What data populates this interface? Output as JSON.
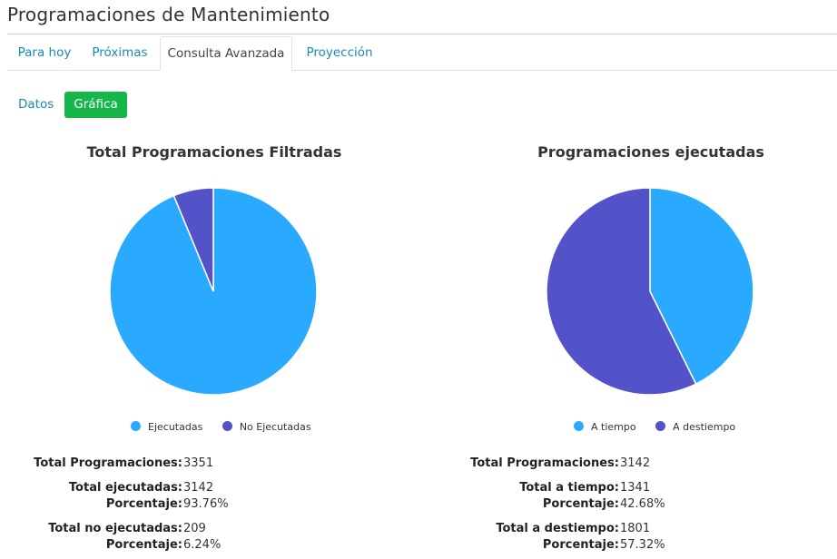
{
  "page": {
    "title": "Programaciones de Mantenimiento"
  },
  "tabs": [
    {
      "label": "Para hoy",
      "active": false
    },
    {
      "label": "Próximas",
      "active": false
    },
    {
      "label": "Consulta Avanzada",
      "active": true
    },
    {
      "label": "Proyección",
      "active": false
    }
  ],
  "subnav": {
    "datos": "Datos",
    "grafica": "Gráfica"
  },
  "colors": {
    "series1": "#2aaaff",
    "series2": "#5352c8",
    "tabLink": "#1b8ab8",
    "activeBtn": "#16b64a"
  },
  "chart_data": [
    {
      "type": "pie",
      "title": "Total Programaciones Filtradas",
      "labels": [
        "Ejecutadas",
        "No Ejecutadas"
      ],
      "values": [
        3142,
        209
      ],
      "colors": [
        "#2aaaff",
        "#5352c8"
      ],
      "legend": "bottom"
    },
    {
      "type": "pie",
      "title": "Programaciones ejecutadas",
      "labels": [
        "A tiempo",
        "A destiempo"
      ],
      "values": [
        1341,
        1801
      ],
      "colors": [
        "#2aaaff",
        "#5352c8"
      ],
      "legend": "bottom"
    }
  ],
  "stats": {
    "left": {
      "total_label": "Total Programaciones:",
      "total_value": "3351",
      "exec_label": "Total ejecutadas:",
      "exec_value": "3142",
      "exec_pct_label": "Porcentaje:",
      "exec_pct_value": "93.76%",
      "noexec_label": "Total no ejecutadas:",
      "noexec_value": "209",
      "noexec_pct_label": "Porcentaje:",
      "noexec_pct_value": "6.24%"
    },
    "right": {
      "total_label": "Total Programaciones:",
      "total_value": "3142",
      "ontime_label": "Total a tiempo:",
      "ontime_value": "1341",
      "ontime_pct_label": "Porcentaje:",
      "ontime_pct_value": "42.68%",
      "late_label": "Total a destiempo:",
      "late_value": "1801",
      "late_pct_label": "Porcentaje:",
      "late_pct_value": "57.32%"
    }
  }
}
